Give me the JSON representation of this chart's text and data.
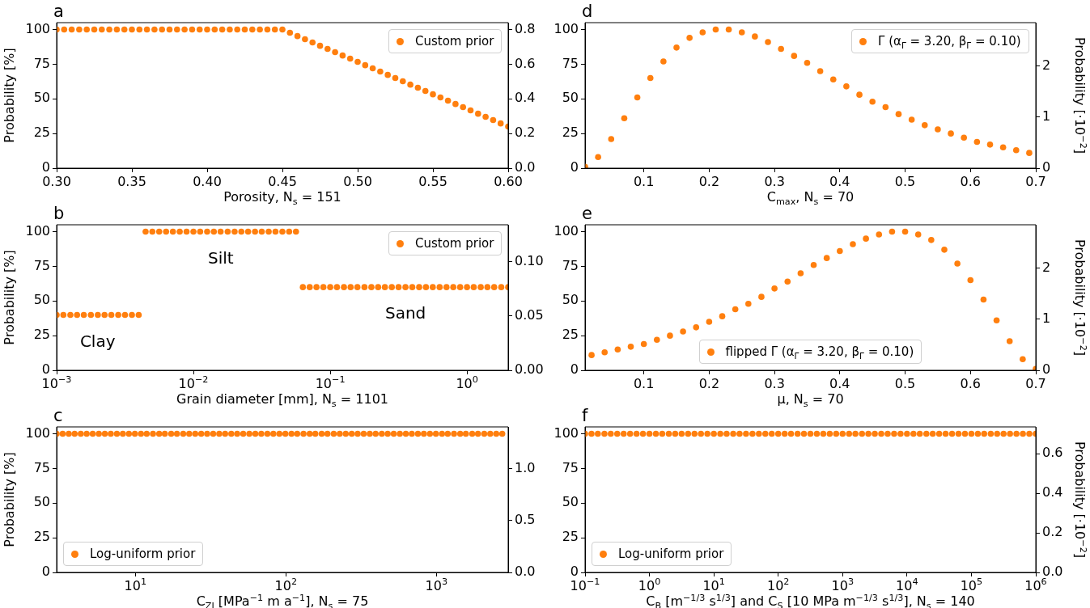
{
  "chart_data": [
    {
      "type": "scatter",
      "title": "a",
      "xlabel": "Porosity, N$_{s}$ = 151",
      "ylabel": "Probability [%]",
      "legend": "top right",
      "marker": "circle",
      "xlim": [
        0.3,
        0.6
      ],
      "xticks": [
        {
          "value": 0.3,
          "label": "0.30"
        },
        0.35,
        {
          "value": 0.4,
          "label": "0.40"
        },
        0.45,
        {
          "value": 0.5,
          "label": "0.50"
        },
        0.55,
        {
          "value": 0.6,
          "label": "0.60"
        }
      ],
      "ylim": [
        0,
        105
      ],
      "yticks": [
        0,
        25,
        50,
        75,
        100
      ],
      "y2lim": [
        0,
        0.84
      ],
      "y2ticks": [
        {
          "value": 0,
          "label": "0.0"
        },
        0.2,
        0.4,
        0.6,
        0.8
      ],
      "series": [
        {
          "name": "Custom prior",
          "color": "#ff7f0e",
          "x": [
            0.3,
            0.305,
            0.31,
            0.315,
            0.32,
            0.325,
            0.33,
            0.335,
            0.34,
            0.345,
            0.35,
            0.355,
            0.36,
            0.365,
            0.37,
            0.375,
            0.38,
            0.385,
            0.39,
            0.395,
            0.4,
            0.405,
            0.41,
            0.415,
            0.42,
            0.425,
            0.43,
            0.435,
            0.44,
            0.445,
            0.45,
            0.455,
            0.46,
            0.465,
            0.47,
            0.475,
            0.48,
            0.485,
            0.49,
            0.495,
            0.5,
            0.505,
            0.51,
            0.515,
            0.52,
            0.525,
            0.53,
            0.535,
            0.54,
            0.545,
            0.55,
            0.555,
            0.56,
            0.565,
            0.57,
            0.575,
            0.58,
            0.585,
            0.59,
            0.595,
            0.6
          ],
          "values": [
            100,
            100,
            100,
            100,
            100,
            100,
            100,
            100,
            100,
            100,
            100,
            100,
            100,
            100,
            100,
            100,
            100,
            100,
            100,
            100,
            100,
            100,
            100,
            100,
            100,
            100,
            100,
            100,
            100,
            100,
            100,
            97.7,
            95.3,
            93,
            90.7,
            88.3,
            86,
            83.7,
            81.3,
            79,
            76.7,
            74.3,
            72,
            69.7,
            67.3,
            65,
            62.7,
            60.3,
            58,
            55.7,
            53.3,
            51,
            48.7,
            46.3,
            44,
            41.7,
            39.3,
            37,
            34.7,
            32.3,
            30
          ]
        }
      ]
    },
    {
      "type": "scatter",
      "title": "b",
      "xlabel": "Grain diameter [mm], N$_{s}$ = 1101",
      "ylabel": "Probability [%]",
      "legend": "top right",
      "marker": "circle",
      "log": "x",
      "xlim": [
        0.001,
        2
      ],
      "xticks": [
        {
          "value": 0.001,
          "label": "10$^{−3}$"
        },
        {
          "value": 0.01,
          "label": "10$^{−2}$"
        },
        {
          "value": 0.1,
          "label": "10$^{−1}$"
        },
        {
          "value": 1,
          "label": "10$^{0}$"
        }
      ],
      "ylim": [
        0,
        105
      ],
      "yticks": [
        0,
        25,
        50,
        75,
        100
      ],
      "y2lim": [
        0,
        0.134
      ],
      "y2ticks": [
        {
          "value": 0,
          "label": "0.00"
        },
        0.05,
        {
          "value": 0.1,
          "label": "0.10"
        }
      ],
      "annotations": [
        "Clay",
        "Silt",
        "Sand"
      ],
      "series": [
        {
          "name": "Custom prior",
          "color": "#ff7f0e",
          "x": [
            0.001,
            0.00112,
            0.00126,
            0.00141,
            0.00158,
            0.00178,
            0.002,
            0.00224,
            0.00251,
            0.00282,
            0.00316,
            0.00355,
            0.00398,
            0.00447,
            0.00501,
            0.00562,
            0.00631,
            0.00708,
            0.00794,
            0.00891,
            0.01,
            0.0112,
            0.0126,
            0.0141,
            0.0158,
            0.0178,
            0.02,
            0.0224,
            0.0251,
            0.0282,
            0.0316,
            0.0355,
            0.0398,
            0.0447,
            0.0501,
            0.0562,
            0.0631,
            0.0708,
            0.0794,
            0.0891,
            0.1,
            0.112,
            0.126,
            0.141,
            0.158,
            0.178,
            0.2,
            0.224,
            0.251,
            0.282,
            0.316,
            0.355,
            0.398,
            0.447,
            0.501,
            0.562,
            0.631,
            0.708,
            0.794,
            0.891,
            1,
            1.12,
            1.26,
            1.41,
            1.58,
            1.78,
            2
          ],
          "values": [
            40,
            40,
            40,
            40,
            40,
            40,
            40,
            40,
            40,
            40,
            40,
            40,
            40,
            100,
            100,
            100,
            100,
            100,
            100,
            100,
            100,
            100,
            100,
            100,
            100,
            100,
            100,
            100,
            100,
            100,
            100,
            100,
            100,
            100,
            100,
            100,
            60,
            60,
            60,
            60,
            60,
            60,
            60,
            60,
            60,
            60,
            60,
            60,
            60,
            60,
            60,
            60,
            60,
            60,
            60,
            60,
            60,
            60,
            60,
            60,
            60,
            60,
            60,
            60,
            60,
            60,
            60
          ]
        }
      ]
    },
    {
      "type": "scatter",
      "title": "c",
      "xlabel": "C$_{ZI}$ [MPa$^{−1}$ m a$^{−1}$], N$_{s}$ = 75",
      "ylabel": "Probability [%]",
      "legend": "bottom left",
      "marker": "circle",
      "log": "x",
      "xlim": [
        3,
        3000
      ],
      "xticks": [
        {
          "value": 10,
          "label": "10$^{1}$"
        },
        {
          "value": 100,
          "label": "10$^{2}$"
        },
        {
          "value": 1000,
          "label": "10$^{3}$"
        }
      ],
      "ylim": [
        0,
        105
      ],
      "yticks": [
        0,
        25,
        50,
        75,
        100
      ],
      "y2lim": [
        0,
        1.4
      ],
      "y2ticks": [
        {
          "value": 0,
          "label": "0.0"
        },
        0.5,
        {
          "value": 1,
          "label": "1.0"
        }
      ],
      "series": [
        {
          "name": "Log-uniform prior",
          "color": "#ff7f0e",
          "x": [
            3,
            3.29,
            3.61,
            3.95,
            4.34,
            4.75,
            5.21,
            5.72,
            6.27,
            6.87,
            7.54,
            8.26,
            9.06,
            9.93,
            10.9,
            11.9,
            13.1,
            14.4,
            15.7,
            17.3,
            18.9,
            20.8,
            22.8,
            25,
            27.4,
            30,
            32.9,
            36.1,
            39.5,
            43.4,
            47.5,
            52.1,
            57.2,
            62.7,
            68.7,
            75.4,
            82.6,
            90.6,
            99.3,
            109,
            119,
            131,
            144,
            157,
            173,
            189,
            208,
            228,
            250,
            274,
            300,
            329,
            361,
            395,
            434,
            475,
            521,
            572,
            627,
            687,
            754,
            826,
            906,
            993,
            1090,
            1190,
            1310,
            1440,
            1570,
            1730,
            1890,
            2080,
            2280,
            2500,
            2740
          ],
          "values": [
            100,
            100,
            100,
            100,
            100,
            100,
            100,
            100,
            100,
            100,
            100,
            100,
            100,
            100,
            100,
            100,
            100,
            100,
            100,
            100,
            100,
            100,
            100,
            100,
            100,
            100,
            100,
            100,
            100,
            100,
            100,
            100,
            100,
            100,
            100,
            100,
            100,
            100,
            100,
            100,
            100,
            100,
            100,
            100,
            100,
            100,
            100,
            100,
            100,
            100,
            100,
            100,
            100,
            100,
            100,
            100,
            100,
            100,
            100,
            100,
            100,
            100,
            100,
            100,
            100,
            100,
            100,
            100,
            100,
            100,
            100,
            100,
            100,
            100,
            100
          ]
        }
      ]
    },
    {
      "type": "scatter",
      "title": "d",
      "xlabel": "C$_{max}$, N$_{s}$ = 70",
      "y2label": "Probability [·10$^{−2}$]",
      "legend": "top right",
      "marker": "circle",
      "xlim": [
        0.01,
        0.7
      ],
      "xticks": [
        0.1,
        0.2,
        0.3,
        0.4,
        0.5,
        0.6,
        0.7
      ],
      "ylim": [
        0,
        105
      ],
      "yticks": [
        0,
        25,
        50,
        75,
        100
      ],
      "y2lim": [
        0,
        2.85
      ],
      "y2ticks": [
        0,
        1,
        2
      ],
      "series": [
        {
          "name": "Γ (α$_{Γ}$ = 3.20, β$_{Γ}$ = 0.10)",
          "color": "#ff7f0e",
          "x": [
            0.01,
            0.03,
            0.05,
            0.07,
            0.09,
            0.11,
            0.13,
            0.15,
            0.17,
            0.19,
            0.21,
            0.23,
            0.25,
            0.27,
            0.29,
            0.31,
            0.33,
            0.35,
            0.37,
            0.39,
            0.41,
            0.43,
            0.45,
            0.47,
            0.49,
            0.51,
            0.53,
            0.55,
            0.57,
            0.59,
            0.61,
            0.63,
            0.65,
            0.67,
            0.69
          ],
          "values": [
            1,
            8,
            21,
            36,
            51,
            65,
            77,
            87,
            94,
            98,
            100,
            100,
            98,
            95,
            91,
            86,
            81,
            76,
            70,
            64,
            59,
            53,
            48,
            44,
            39,
            35,
            31,
            28,
            25,
            22,
            19,
            17,
            15,
            13,
            11
          ]
        }
      ]
    },
    {
      "type": "scatter",
      "title": "e",
      "xlabel": "μ, N$_{s}$ = 70",
      "y2label": "Probability [·10$^{−2}$]",
      "legend": "bottom",
      "marker": "circle",
      "xlim": [
        0.01,
        0.7
      ],
      "xticks": [
        0.1,
        0.2,
        0.3,
        0.4,
        0.5,
        0.6,
        0.7
      ],
      "ylim": [
        0,
        105
      ],
      "yticks": [
        0,
        25,
        50,
        75,
        100
      ],
      "y2lim": [
        0,
        2.85
      ],
      "y2ticks": [
        0,
        1,
        2
      ],
      "series": [
        {
          "name": "flipped Γ (α$_{Γ}$ = 3.20, β$_{Γ}$ = 0.10)",
          "color": "#ff7f0e",
          "x": [
            0.02,
            0.04,
            0.06,
            0.08,
            0.1,
            0.12,
            0.14,
            0.16,
            0.18,
            0.2,
            0.22,
            0.24,
            0.26,
            0.28,
            0.3,
            0.32,
            0.34,
            0.36,
            0.38,
            0.4,
            0.42,
            0.44,
            0.46,
            0.48,
            0.5,
            0.52,
            0.54,
            0.56,
            0.58,
            0.6,
            0.62,
            0.64,
            0.66,
            0.68,
            0.7
          ],
          "values": [
            11,
            13,
            15,
            17,
            19,
            22,
            25,
            28,
            31,
            35,
            39,
            44,
            48,
            53,
            59,
            64,
            70,
            76,
            81,
            86,
            91,
            95,
            98,
            100,
            100,
            98,
            94,
            87,
            77,
            65,
            51,
            36,
            21,
            8,
            1
          ]
        }
      ]
    },
    {
      "type": "scatter",
      "title": "f",
      "xlabel": "C$_{B}$ [m$^{−1/3}$ s$^{1/3}$] and C$_{S}$ [10 MPa m$^{−1/3}$ s$^{1/3}$], N$_{s}$ = 140",
      "y2label": "Probability [·10$^{−2}$]",
      "legend": "bottom left",
      "marker": "circle",
      "log": "x",
      "xlim": [
        0.1,
        1000000
      ],
      "xticks": [
        {
          "value": 0.1,
          "label": "10$^{−1}$"
        },
        {
          "value": 1,
          "label": "10$^{0}$"
        },
        {
          "value": 10,
          "label": "10$^{1}$"
        },
        {
          "value": 100,
          "label": "10$^{2}$"
        },
        {
          "value": 1000,
          "label": "10$^{3}$"
        },
        {
          "value": 10000,
          "label": "10$^{4}$"
        },
        {
          "value": 100000,
          "label": "10$^{5}$"
        },
        {
          "value": 1000000,
          "label": "10$^{6}$"
        }
      ],
      "ylim": [
        0,
        105
      ],
      "yticks": [
        0,
        25,
        50,
        75,
        100
      ],
      "y2lim": [
        0,
        0.735
      ],
      "y2ticks": [
        {
          "value": 0,
          "label": "0.0"
        },
        0.2,
        0.4,
        0.6
      ],
      "series": [
        {
          "name": "Log-uniform prior",
          "color": "#ff7f0e",
          "x": [
            0.1,
            0.126,
            0.158,
            0.2,
            0.251,
            0.316,
            0.398,
            0.501,
            0.631,
            0.794,
            1,
            1.26,
            1.58,
            2,
            2.51,
            3.16,
            3.98,
            5.01,
            6.31,
            7.94,
            10,
            12.6,
            15.8,
            20,
            25.1,
            31.6,
            39.8,
            50.1,
            63.1,
            79.4,
            100,
            126,
            158,
            200,
            251,
            316,
            398,
            501,
            631,
            794,
            1000,
            1260,
            1580,
            2000,
            2510,
            3160,
            3980,
            5010,
            6310,
            7940,
            10000,
            12600,
            15800,
            20000,
            25100,
            31600,
            39800,
            50100,
            63100,
            79400,
            100000,
            126000,
            158000,
            200000,
            251000,
            316000,
            398000,
            501000,
            631000,
            794000,
            1000000
          ],
          "values": [
            100,
            100,
            100,
            100,
            100,
            100,
            100,
            100,
            100,
            100,
            100,
            100,
            100,
            100,
            100,
            100,
            100,
            100,
            100,
            100,
            100,
            100,
            100,
            100,
            100,
            100,
            100,
            100,
            100,
            100,
            100,
            100,
            100,
            100,
            100,
            100,
            100,
            100,
            100,
            100,
            100,
            100,
            100,
            100,
            100,
            100,
            100,
            100,
            100,
            100,
            100,
            100,
            100,
            100,
            100,
            100,
            100,
            100,
            100,
            100,
            100,
            100,
            100,
            100,
            100,
            100,
            100,
            100,
            100,
            100,
            100
          ]
        }
      ]
    }
  ]
}
